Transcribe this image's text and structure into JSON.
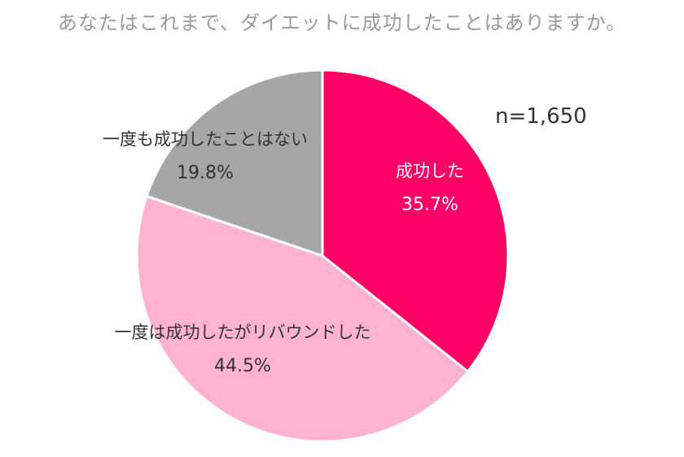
{
  "title": "あなたはこれまで、ダイエットに成功したことはありますか。",
  "sample_size": "n=1,650",
  "chart_data": {
    "type": "pie",
    "title": "あなたはこれまで、ダイエットに成功したことはありますか。",
    "slices": [
      {
        "label": "成功した",
        "value": 35.7,
        "value_label": "35.7%",
        "color": "#ff0066",
        "text_color": "#ffffff"
      },
      {
        "label": "一度は成功したがリバウンドした",
        "value": 44.5,
        "value_label": "44.5%",
        "color": "#ffb3d1",
        "text_color": "#333333"
      },
      {
        "label": "一度も成功したことはない",
        "value": 19.8,
        "value_label": "19.8%",
        "color": "#a6a6a6",
        "text_color": "#333333"
      }
    ],
    "start_angle": "12 o'clock",
    "direction": "clockwise",
    "annotation": "n=1,650"
  }
}
